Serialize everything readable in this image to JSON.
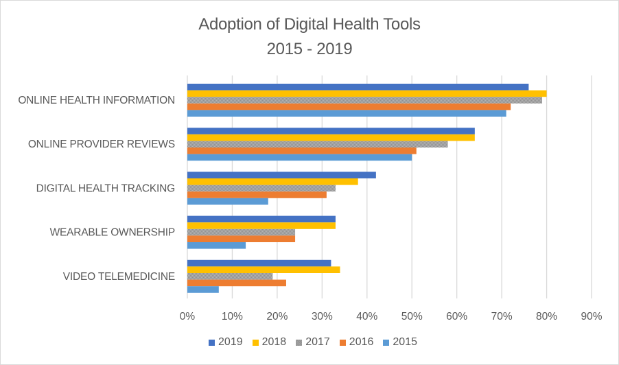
{
  "chart_data": {
    "type": "bar",
    "orientation": "horizontal",
    "title": "Adoption of Digital Health Tools",
    "subtitle": "2015 - 2019",
    "xlabel": "",
    "ylabel": "",
    "categories": [
      "ONLINE HEALTH INFORMATION",
      "ONLINE PROVIDER REVIEWS",
      "DIGITAL HEALTH TRACKING",
      "WEARABLE OWNERSHIP",
      "VIDEO TELEMEDICINE"
    ],
    "series": [
      {
        "name": "2019",
        "color": "#4472C4",
        "pattern": "solid",
        "values": [
          76,
          64,
          42,
          33,
          32
        ]
      },
      {
        "name": "2018",
        "color": "#FFC000",
        "pattern": "solid",
        "values": [
          80,
          64,
          38,
          33,
          34
        ]
      },
      {
        "name": "2017",
        "color": "#A5A5A5",
        "pattern": "dotted",
        "values": [
          79,
          58,
          33,
          24,
          19
        ]
      },
      {
        "name": "2016",
        "color": "#ED7D31",
        "pattern": "solid",
        "values": [
          72,
          51,
          31,
          24,
          22
        ]
      },
      {
        "name": "2015",
        "color": "#5B9BD5",
        "pattern": "solid",
        "values": [
          71,
          50,
          18,
          13,
          7
        ]
      }
    ],
    "value_unit": "%",
    "xlim": [
      0,
      90
    ],
    "x_ticks": [
      "0%",
      "10%",
      "20%",
      "30%",
      "40%",
      "50%",
      "60%",
      "70%",
      "80%",
      "90%"
    ],
    "grid": "vertical",
    "legend_position": "bottom"
  }
}
